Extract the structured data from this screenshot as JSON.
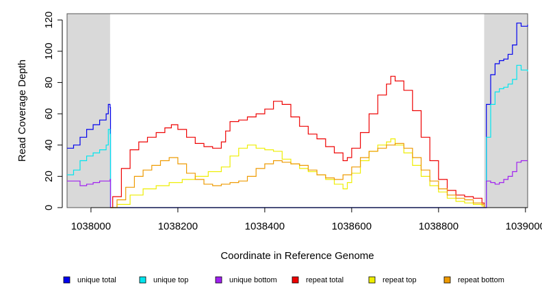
{
  "chart_data": {
    "type": "line",
    "style": "step",
    "xlabel": "Coordinate in Reference Genome",
    "ylabel": "Read Coverage Depth",
    "xlim": [
      1037945,
      1039005
    ],
    "ylim": [
      0,
      124
    ],
    "x_ticks": [
      1038000,
      1038200,
      1038400,
      1038600,
      1038800,
      1039000
    ],
    "x_tick_labels": [
      "1038000",
      "1038200",
      "1038400",
      "1038600",
      "1038800",
      "1039000"
    ],
    "y_ticks": [
      0,
      20,
      40,
      60,
      80,
      100,
      120
    ],
    "y_tick_labels": [
      "0",
      "20",
      "40",
      "60",
      "80",
      "100",
      "120"
    ],
    "shaded_regions": [
      [
        1037945,
        1038044
      ],
      [
        1038905,
        1039005
      ]
    ],
    "legend_position": "bottom",
    "series": [
      {
        "name": "unique total",
        "color": "#0000ee",
        "x": [
          1037945,
          1037960,
          1037975,
          1037990,
          1038005,
          1038020,
          1038035,
          1038040,
          1038044,
          1038045,
          1038900,
          1038905,
          1038910,
          1038920,
          1038930,
          1038940,
          1038950,
          1038960,
          1038970,
          1038980,
          1038990,
          1039005
        ],
        "y": [
          38,
          40,
          45,
          50,
          53,
          56,
          60,
          66,
          64,
          0,
          0,
          0,
          66,
          85,
          92,
          94,
          95,
          98,
          104,
          118,
          116,
          117
        ]
      },
      {
        "name": "unique top",
        "color": "#00e5ee",
        "x": [
          1037945,
          1037960,
          1037975,
          1037990,
          1038005,
          1038020,
          1038035,
          1038040,
          1038044,
          1038045,
          1038900,
          1038905,
          1038910,
          1038920,
          1038930,
          1038940,
          1038950,
          1038960,
          1038970,
          1038980,
          1038990,
          1039005
        ],
        "y": [
          21,
          24,
          30,
          33,
          35,
          37,
          40,
          50,
          47,
          0,
          0,
          0,
          45,
          66,
          74,
          76,
          77,
          79,
          82,
          91,
          88,
          87
        ]
      },
      {
        "name": "unique bottom",
        "color": "#a020f0",
        "x": [
          1037945,
          1037960,
          1037975,
          1037990,
          1038005,
          1038020,
          1038035,
          1038044,
          1038045,
          1038900,
          1038905,
          1038910,
          1038920,
          1038930,
          1038940,
          1038950,
          1038960,
          1038970,
          1038980,
          1038990,
          1039005
        ],
        "y": [
          17,
          17,
          14,
          15,
          16,
          17,
          17,
          18,
          0,
          0,
          0,
          17,
          16,
          15,
          16,
          18,
          20,
          23,
          29,
          30,
          30
        ]
      },
      {
        "name": "repeat total",
        "color": "#ee0000",
        "x": [
          1038045,
          1038050,
          1038070,
          1038090,
          1038110,
          1038130,
          1038150,
          1038170,
          1038185,
          1038200,
          1038220,
          1038240,
          1038260,
          1038280,
          1038300,
          1038310,
          1038320,
          1038340,
          1038360,
          1038380,
          1038400,
          1038420,
          1038440,
          1038460,
          1038480,
          1038500,
          1038520,
          1038540,
          1038560,
          1038580,
          1038590,
          1038600,
          1038620,
          1038640,
          1038660,
          1038680,
          1038690,
          1038700,
          1038720,
          1038740,
          1038760,
          1038780,
          1038800,
          1038820,
          1038840,
          1038860,
          1038880,
          1038900,
          1038905
        ],
        "y": [
          0,
          7,
          25,
          37,
          42,
          45,
          48,
          51,
          53,
          50,
          45,
          41,
          39,
          38,
          42,
          49,
          55,
          56,
          58,
          60,
          63,
          68,
          66,
          58,
          52,
          47,
          44,
          39,
          35,
          30,
          32,
          38,
          48,
          60,
          72,
          79,
          84,
          81,
          75,
          62,
          45,
          30,
          18,
          11,
          8,
          7,
          6,
          3,
          0
        ]
      },
      {
        "name": "repeat top",
        "color": "#eeee00",
        "x": [
          1038045,
          1038060,
          1038090,
          1038120,
          1038150,
          1038180,
          1038210,
          1038240,
          1038270,
          1038300,
          1038320,
          1038340,
          1038360,
          1038380,
          1038400,
          1038420,
          1038440,
          1038460,
          1038480,
          1038500,
          1038520,
          1038540,
          1038560,
          1038580,
          1038590,
          1038600,
          1038620,
          1038640,
          1038660,
          1038680,
          1038690,
          1038700,
          1038720,
          1038740,
          1038760,
          1038780,
          1038800,
          1038820,
          1038840,
          1038860,
          1038880,
          1038900,
          1038905
        ],
        "y": [
          0,
          2,
          8,
          12,
          14,
          16,
          18,
          20,
          23,
          26,
          33,
          38,
          40,
          38,
          37,
          36,
          31,
          28,
          25,
          23,
          21,
          18,
          15,
          12,
          16,
          22,
          30,
          36,
          40,
          42,
          44,
          40,
          35,
          27,
          20,
          14,
          10,
          6,
          4,
          3,
          2,
          1,
          0
        ]
      },
      {
        "name": "repeat bottom",
        "color": "#ee9a00",
        "x": [
          1038045,
          1038060,
          1038080,
          1038100,
          1038120,
          1038140,
          1038160,
          1038180,
          1038200,
          1038220,
          1038240,
          1038260,
          1038280,
          1038300,
          1038320,
          1038340,
          1038360,
          1038380,
          1038400,
          1038420,
          1038440,
          1038460,
          1038480,
          1038500,
          1038520,
          1038540,
          1038560,
          1038580,
          1038600,
          1038620,
          1038640,
          1038660,
          1038680,
          1038700,
          1038720,
          1038740,
          1038760,
          1038780,
          1038800,
          1038820,
          1038840,
          1038860,
          1038880,
          1038900,
          1038905
        ],
        "y": [
          0,
          5,
          13,
          20,
          24,
          27,
          30,
          32,
          28,
          22,
          18,
          15,
          14,
          15,
          16,
          17,
          20,
          25,
          28,
          30,
          29,
          28,
          27,
          24,
          21,
          19,
          18,
          21,
          26,
          32,
          36,
          38,
          40,
          41,
          38,
          32,
          24,
          17,
          12,
          8,
          6,
          5,
          3,
          2,
          0
        ]
      }
    ]
  }
}
